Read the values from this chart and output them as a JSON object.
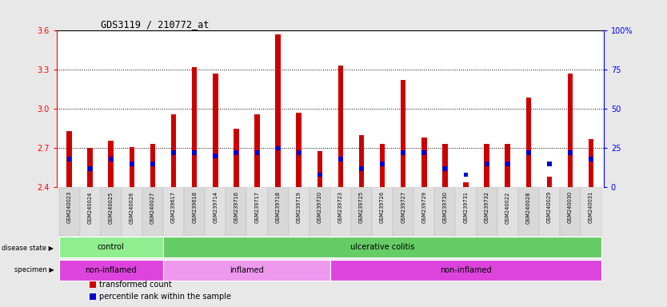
{
  "title": "GDS3119 / 210772_at",
  "samples": [
    "GSM240023",
    "GSM240024",
    "GSM240025",
    "GSM240026",
    "GSM240027",
    "GSM239617",
    "GSM239618",
    "GSM239714",
    "GSM239716",
    "GSM239717",
    "GSM239718",
    "GSM239719",
    "GSM239720",
    "GSM239723",
    "GSM239725",
    "GSM239726",
    "GSM239727",
    "GSM239729",
    "GSM239730",
    "GSM239731",
    "GSM239732",
    "GSM240022",
    "GSM240028",
    "GSM240029",
    "GSM240030",
    "GSM240031"
  ],
  "transformed_count": [
    2.83,
    2.7,
    2.76,
    2.71,
    2.73,
    2.96,
    3.32,
    3.27,
    2.85,
    2.96,
    3.57,
    2.97,
    2.68,
    3.33,
    2.8,
    2.73,
    3.22,
    2.78,
    2.73,
    2.44,
    2.73,
    2.73,
    3.09,
    2.48,
    3.27,
    2.77
  ],
  "percentile_rank": [
    18,
    12,
    18,
    15,
    15,
    22,
    22,
    20,
    22,
    22,
    25,
    22,
    8,
    18,
    12,
    15,
    22,
    22,
    12,
    8,
    15,
    15,
    22,
    15,
    22,
    18
  ],
  "ylim_left": [
    2.4,
    3.6
  ],
  "ylim_right": [
    0,
    100
  ],
  "yticks_left": [
    2.4,
    2.7,
    3.0,
    3.3,
    3.6
  ],
  "yticks_right": [
    0,
    25,
    50,
    75,
    100
  ],
  "bar_color": "#cc0000",
  "percentile_color": "#0000cc",
  "background_color": "#e8e8e8",
  "plot_bg": "#ffffff",
  "xlabel_bg": "#d0d0d0",
  "disease_state_groups": [
    {
      "label": "control",
      "start": 0,
      "end": 4,
      "color": "#90ee90"
    },
    {
      "label": "ulcerative colitis",
      "start": 5,
      "end": 25,
      "color": "#66cc66"
    }
  ],
  "specimen_groups": [
    {
      "label": "non-inflamed",
      "start": 0,
      "end": 4,
      "color": "#dd44dd"
    },
    {
      "label": "inflamed",
      "start": 5,
      "end": 12,
      "color": "#ee99ee"
    },
    {
      "label": "non-inflamed",
      "start": 13,
      "end": 25,
      "color": "#dd44dd"
    }
  ],
  "legend_items": [
    {
      "label": "transformed count",
      "color": "#cc0000"
    },
    {
      "label": "percentile rank within the sample",
      "color": "#0000cc"
    }
  ]
}
